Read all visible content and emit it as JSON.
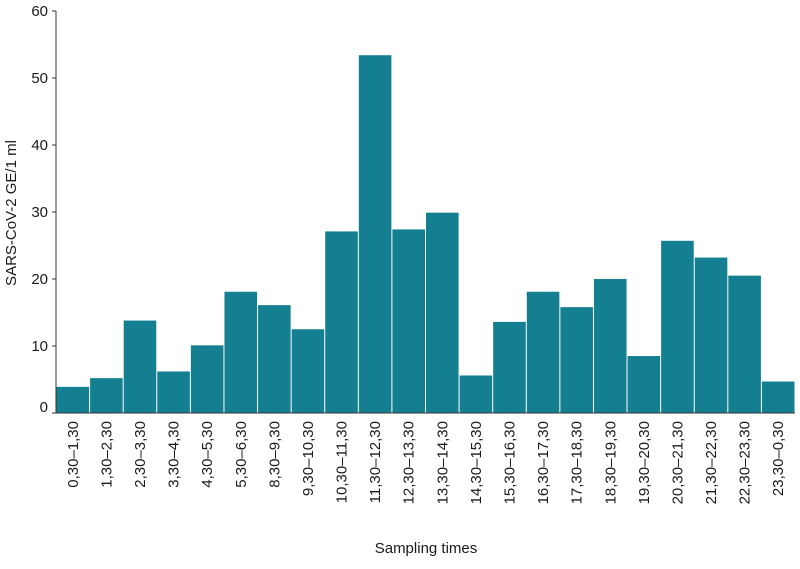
{
  "chart_data": {
    "type": "bar",
    "title": "",
    "xlabel": "Sampling times",
    "ylabel": "SARS-CoV-2 GE/1 ml",
    "ylim": [
      0,
      60
    ],
    "yticks": [
      0,
      10,
      20,
      30,
      40,
      50,
      60
    ],
    "grid": false,
    "bar_color": "#137f91",
    "categories": [
      "0,30–1,30",
      "1,30–2,30",
      "2,30–3,30",
      "3,30–4,30",
      "4,30–5,30",
      "5,30–6,30",
      "8,30–9,30",
      "9,30–10,30",
      "10,30–11,30",
      "11,30–12,30",
      "12,30–13,30",
      "13,30–14,30",
      "14,30–15,30",
      "15,30–16,30",
      "16,30–17,30",
      "17,30–18,30",
      "18,30–19,30",
      "19,30–20,30",
      "20,30–21,30",
      "21,30–22,30",
      "22,30–23,30",
      "23,30–0,30"
    ],
    "values": [
      3.9,
      5.2,
      13.8,
      6.2,
      10.1,
      18.1,
      16.1,
      12.5,
      27.1,
      53.4,
      27.4,
      29.9,
      5.6,
      13.6,
      18.1,
      15.8,
      20.0,
      8.5,
      25.7,
      23.2,
      20.5,
      4.7
    ]
  }
}
